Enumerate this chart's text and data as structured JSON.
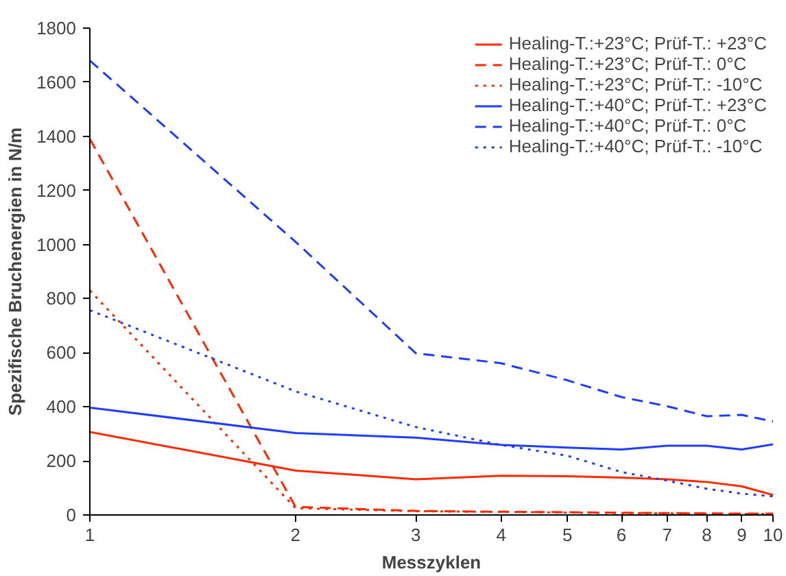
{
  "chart_data": {
    "type": "line",
    "xlabel": "Messzyklen",
    "ylabel": "Spezifische Bruchenergien in N/m",
    "x": [
      1,
      2,
      3,
      4,
      5,
      6,
      7,
      8,
      9,
      10
    ],
    "log": "x",
    "xlim": [
      1,
      10
    ],
    "xticks": [
      1,
      2,
      3,
      4,
      5,
      6,
      7,
      8,
      9,
      10
    ],
    "ylim": [
      0,
      1800
    ],
    "yticks": [
      0,
      200,
      400,
      600,
      800,
      1000,
      1200,
      1400,
      1600,
      1800
    ],
    "grid": false,
    "legend": "top right",
    "marker": "none",
    "series": [
      {
        "name": "Healing-T.:+23°C; Prüf-T.: +23°C",
        "color": "#ff2a00",
        "line_style": "solid",
        "values": [
          307,
          164,
          132,
          145,
          143,
          138,
          132,
          122,
          106,
          74
        ]
      },
      {
        "name": "Healing-T.:+23°C; Prüf-T.: 0°C",
        "color": "#ff2a00",
        "line_style": "dashed",
        "values": [
          1390,
          30,
          15,
          12,
          10,
          8,
          7,
          6,
          5,
          5
        ]
      },
      {
        "name": "Healing-T.:+23°C; Prüf-T.: -10°C",
        "color": "#ff2a00",
        "line_style": "dotted",
        "values": [
          830,
          25,
          14,
          11,
          9,
          7,
          6,
          5,
          4,
          4
        ]
      },
      {
        "name": "Healing-T.:+40°C; Prüf-T.: +23°C",
        "color": "#1f3cff",
        "line_style": "solid",
        "values": [
          397,
          303,
          286,
          259,
          249,
          242,
          256,
          256,
          242,
          261
        ]
      },
      {
        "name": "Healing-T.:+40°C; Prüf-T.: 0°C",
        "color": "#1f3cff",
        "line_style": "dashed",
        "values": [
          1680,
          1010,
          598,
          561,
          498,
          436,
          402,
          365,
          370,
          346
        ]
      },
      {
        "name": "Healing-T.:+40°C; Prüf-T.: -10°C",
        "color": "#1f3cff",
        "line_style": "dotted",
        "values": [
          757,
          457,
          325,
          259,
          219,
          159,
          127,
          97,
          79,
          69
        ]
      }
    ]
  }
}
